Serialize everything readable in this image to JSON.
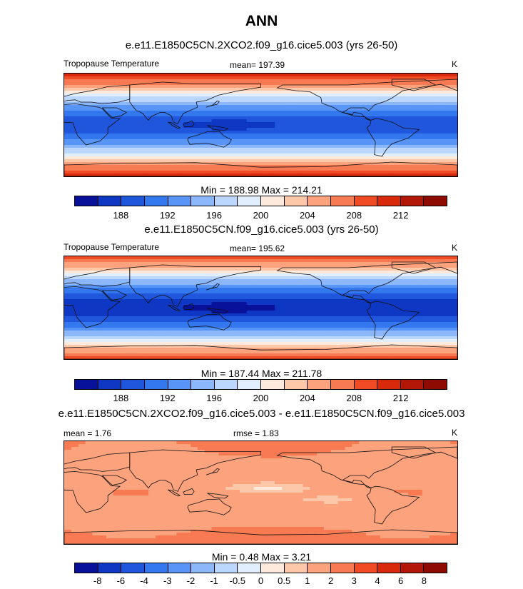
{
  "figure": {
    "title": "ANN"
  },
  "colors": {
    "temp_scale": [
      "#08119a",
      "#0e38c4",
      "#2056dc",
      "#3478f0",
      "#5895f7",
      "#8cb7fb",
      "#bcd7fd",
      "#e0eefe",
      "#fee9dd",
      "#fdc7a9",
      "#fca27d",
      "#f77a52",
      "#f04b24",
      "#d9290c",
      "#b21707",
      "#8e0b04"
    ],
    "diff_scale": [
      "#08119a",
      "#0e38c4",
      "#2056dc",
      "#3478f0",
      "#5895f7",
      "#8cb7fb",
      "#bcd7fd",
      "#e0eefe",
      "#fee9dd",
      "#fdc7a9",
      "#fca27d",
      "#f77a52",
      "#f04b24",
      "#d9290c",
      "#b21707",
      "#8e0b04"
    ]
  },
  "panels": [
    {
      "case_title": "e.e11.E1850C5CN.2XCO2.f09_g16.cice5.003 (yrs 26-50)",
      "left_label": "Tropopause Temperature",
      "center_label": "mean= 197.39",
      "right_label": "K",
      "minmax": "Min = 188.98 Max = 214.21",
      "ticks": [
        "188",
        "192",
        "196",
        "200",
        "204",
        "208",
        "212"
      ]
    },
    {
      "case_title": "e.e11.E1850C5CN.f09_g16.cice5.003 (yrs 26-50)",
      "left_label": "Tropopause Temperature",
      "center_label": "mean= 195.62",
      "right_label": "K",
      "minmax": "Min = 187.44 Max = 211.78",
      "ticks": [
        "188",
        "192",
        "196",
        "200",
        "204",
        "208",
        "212"
      ]
    },
    {
      "case_title": "e.e11.E1850C5CN.2XCO2.f09_g16.cice5.003 - e.e11.E1850C5CN.f09_g16.cice5.003",
      "left_label": "mean =   1.76",
      "center_label": "rmse =   1.83",
      "right_label": "K",
      "minmax": "Min =   0.48 Max =   3.21",
      "ticks": [
        "-8",
        "-6",
        "-4",
        "-3",
        "-2",
        "-1",
        "-0.5",
        "0",
        "0.5",
        "1",
        "2",
        "3",
        "4",
        "6",
        "8"
      ]
    }
  ],
  "chart_data": [
    {
      "type": "heatmap",
      "title": "e.e11.E1850C5CN.2XCO2.f09_g16.cice5.003 (yrs 26-50)",
      "variable": "Tropopause Temperature",
      "units": "K",
      "mean": 197.39,
      "min": 188.98,
      "max": 214.21,
      "levels": [
        188,
        190,
        192,
        194,
        196,
        198,
        200,
        202,
        204,
        206,
        208,
        210,
        212,
        214
      ],
      "tick_labels": [
        188,
        192,
        196,
        200,
        204,
        208,
        212
      ],
      "lat_profile_K": [
        213,
        209,
        204,
        199,
        195,
        192,
        191,
        192,
        195,
        199,
        204,
        209,
        213
      ],
      "warm_pool_min_K": 189
    },
    {
      "type": "heatmap",
      "title": "e.e11.E1850C5CN.f09_g16.cice5.003 (yrs 26-50)",
      "variable": "Tropopause Temperature",
      "units": "K",
      "mean": 195.62,
      "min": 187.44,
      "max": 211.78,
      "levels": [
        188,
        190,
        192,
        194,
        196,
        198,
        200,
        202,
        204,
        206,
        208,
        210,
        212,
        214
      ],
      "tick_labels": [
        188,
        192,
        196,
        200,
        204,
        208,
        212
      ],
      "lat_profile_K": [
        211,
        207,
        202,
        197,
        193,
        190,
        189,
        190,
        193,
        197,
        202,
        207,
        211
      ],
      "warm_pool_min_K": 187.5
    },
    {
      "type": "heatmap",
      "title": "e.e11.E1850C5CN.2XCO2.f09_g16.cice5.003 - e.e11.E1850C5CN.f09_g16.cice5.003",
      "units": "K",
      "mean": 1.76,
      "rmse": 1.83,
      "min": 0.48,
      "max": 3.21,
      "levels": [
        -8,
        -6,
        -4,
        -3,
        -2,
        -1,
        -0.5,
        0,
        0.5,
        1,
        2,
        3,
        4,
        6,
        8
      ],
      "tick_labels": [
        -8,
        -6,
        -4,
        -3,
        -2,
        -1,
        -0.5,
        0,
        0.5,
        1,
        2,
        3,
        4,
        6,
        8
      ],
      "lat_profile_K": [
        2.2,
        2.0,
        1.8,
        1.6,
        1.5,
        1.6,
        1.7,
        1.6,
        1.5,
        1.7,
        1.9,
        2.2,
        2.5
      ]
    }
  ]
}
